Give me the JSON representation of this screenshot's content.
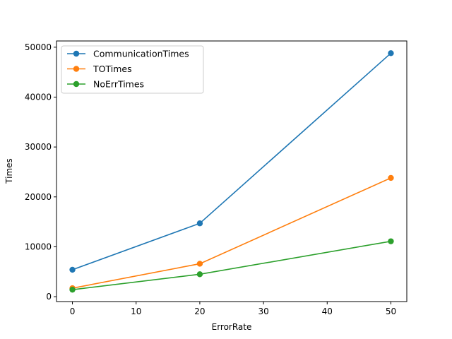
{
  "chart_data": {
    "type": "line",
    "xlabel": "ErrorRate",
    "ylabel": "Times",
    "x": [
      0,
      20,
      50
    ],
    "xlim": [
      -2.5,
      52.5
    ],
    "ylim": [
      -980,
      51250
    ],
    "xticks": [
      0,
      10,
      20,
      30,
      40,
      50
    ],
    "yticks": [
      0,
      10000,
      20000,
      30000,
      40000,
      50000
    ],
    "grid": false,
    "legend_position": "upper-left",
    "series": [
      {
        "name": "CommunicationTimes",
        "color": "#1f77b4",
        "values": [
          5400,
          14700,
          48800
        ]
      },
      {
        "name": "TOTimes",
        "color": "#ff7f0e",
        "values": [
          1700,
          6600,
          23800
        ]
      },
      {
        "name": "NoErrTimes",
        "color": "#2ca02c",
        "values": [
          1400,
          4500,
          11100
        ]
      }
    ]
  }
}
